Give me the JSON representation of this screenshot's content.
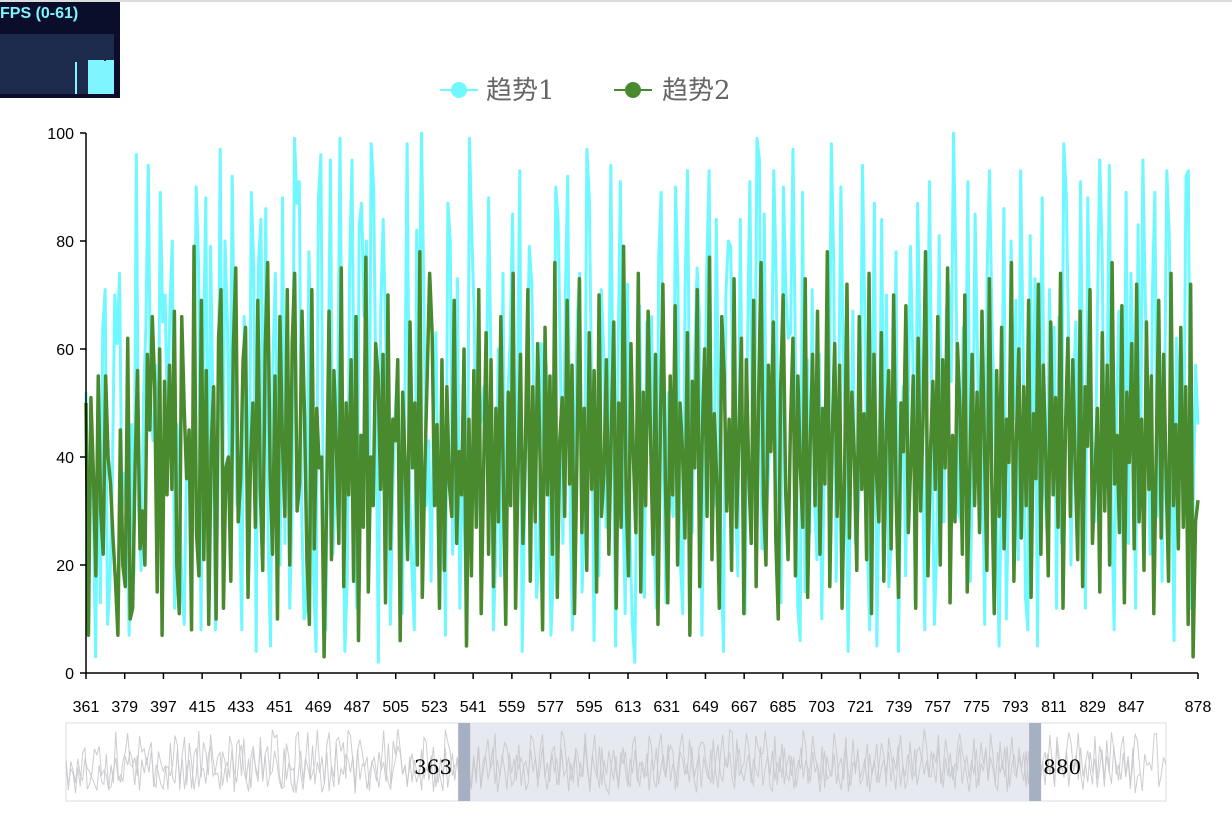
{
  "fps_monitor": {
    "label": "FPS (0-61)",
    "recent_fps": [
      61,
      61,
      61,
      61,
      61,
      61,
      60,
      61,
      61,
      61
    ]
  },
  "chart_data": {
    "type": "line",
    "x_start": 361,
    "x_end": 878,
    "x_tick_labels": [
      "361",
      "379",
      "397",
      "415",
      "433",
      "451",
      "469",
      "487",
      "505",
      "523",
      "541",
      "559",
      "577",
      "595",
      "613",
      "631",
      "649",
      "667",
      "685",
      "703",
      "721",
      "739",
      "757",
      "775",
      "793",
      "811",
      "829",
      "847",
      "878"
    ],
    "y_tick_labels": [
      "0",
      "20",
      "40",
      "60",
      "80",
      "100"
    ],
    "ylim": [
      0,
      100
    ],
    "grid": false,
    "legend_position": "top-center",
    "series": [
      {
        "name": "趋势1",
        "color": "#6ff8ff",
        "values": [
          52,
          14,
          40,
          32,
          3,
          42,
          13,
          64,
          71,
          9,
          17,
          36,
          70,
          61,
          74,
          30,
          37,
          30,
          7,
          46,
          18,
          96,
          30,
          19,
          51,
          64,
          94,
          47,
          43,
          57,
          29,
          89,
          65,
          70,
          46,
          67,
          80,
          12,
          46,
          34,
          16,
          9,
          41,
          43,
          29,
          46,
          90,
          75,
          8,
          60,
          88,
          15,
          79,
          48,
          8,
          31,
          97,
          27,
          80,
          65,
          30,
          92,
          55,
          31,
          33,
          8,
          66,
          52,
          19,
          89,
          75,
          4,
          76,
          84,
          29,
          86,
          24,
          5,
          58,
          74,
          37,
          20,
          88,
          24,
          61,
          12,
          29,
          99,
          87,
          91,
          30,
          10,
          12,
          78,
          58,
          17,
          4,
          88,
          96,
          32,
          8,
          49,
          95,
          22,
          33,
          48,
          99,
          44,
          4,
          17,
          75,
          95,
          36,
          12,
          83,
          87,
          66,
          80,
          25,
          98,
          90,
          51,
          2,
          67,
          84,
          63,
          40,
          9,
          33,
          48,
          57,
          32,
          11,
          47,
          98,
          34,
          19,
          8,
          82,
          61,
          100,
          69,
          31,
          43,
          17,
          46,
          63,
          34,
          19,
          39,
          7,
          87,
          80,
          22,
          43,
          73,
          12,
          40,
          25,
          6,
          99,
          81,
          66,
          29,
          45,
          47,
          53,
          49,
          88,
          56,
          8,
          22,
          60,
          18,
          74,
          9,
          51,
          62,
          85,
          39,
          50,
          93,
          4,
          29,
          55,
          79,
          72,
          44,
          14,
          21,
          61,
          39,
          57,
          43,
          7,
          18,
          90,
          84,
          56,
          24,
          70,
          92,
          31,
          8,
          42,
          66,
          74,
          15,
          30,
          97,
          88,
          52,
          6,
          49,
          18,
          71,
          60,
          27,
          38,
          94,
          45,
          5,
          58,
          91,
          33,
          11,
          72,
          25,
          9,
          2,
          45,
          68,
          36,
          14,
          65,
          47,
          66,
          24,
          12,
          77,
          89,
          35,
          13,
          52,
          33,
          29,
          90,
          72,
          21,
          11,
          71,
          93,
          40,
          26,
          59,
          75,
          66,
          7,
          42,
          74,
          93,
          44,
          31,
          84,
          46,
          23,
          4,
          70,
          80,
          79,
          49,
          31,
          18,
          84,
          36,
          11,
          59,
          91,
          47,
          43,
          99,
          95,
          23,
          85,
          29,
          40,
          48,
          93,
          73,
          33,
          13,
          90,
          71,
          62,
          63,
          97,
          59,
          12,
          6,
          89,
          15,
          58,
          26,
          71,
          31,
          21,
          59,
          10,
          35,
          53,
          39,
          98,
          76,
          17,
          46,
          90,
          57,
          43,
          4,
          35,
          67,
          24,
          28,
          38,
          94,
          66,
          25,
          8,
          48,
          87,
          5,
          37,
          84,
          32,
          70,
          16,
          24,
          45,
          78,
          4,
          36,
          53,
          18,
          46,
          79,
          59,
          13,
          87,
          63,
          38,
          8,
          55,
          91,
          45,
          9,
          23,
          81,
          39,
          28,
          67,
          72,
          54,
          100,
          74,
          30,
          28,
          64,
          48,
          91,
          17,
          38,
          85,
          58,
          26,
          44,
          9,
          74,
          93,
          66,
          49,
          29,
          5,
          37,
          86,
          10,
          34,
          80,
          47,
          69,
          21,
          93,
          61,
          14,
          8,
          81,
          39,
          73,
          5,
          50,
          88,
          34,
          26,
          71,
          40,
          64,
          12,
          66,
          24,
          98,
          89,
          62,
          20,
          51,
          65,
          33,
          91,
          46,
          12,
          88,
          57,
          42,
          28,
          66,
          95,
          78,
          36,
          50,
          94,
          32,
          8,
          48,
          67,
          39,
          16,
          89,
          24,
          74,
          57,
          12,
          83,
          34,
          95,
          69,
          46,
          22,
          71,
          89,
          29,
          59,
          17,
          48,
          93,
          81,
          38,
          6,
          62,
          45,
          49,
          37,
          92,
          93,
          12,
          31,
          57,
          46
        ],
        "source_note": ""
      },
      {
        "name": "趋势2",
        "color": "#4a8a2f",
        "values": [
          50,
          7,
          51,
          37,
          18,
          55,
          30,
          22,
          55,
          40,
          35,
          25,
          17,
          7,
          45,
          20,
          16,
          62,
          10,
          12,
          38,
          56,
          23,
          30,
          20,
          59,
          45,
          66,
          53,
          15,
          60,
          7,
          54,
          33,
          57,
          34,
          67,
          20,
          11,
          66,
          49,
          36,
          45,
          8,
          79,
          26,
          18,
          69,
          21,
          56,
          9,
          42,
          53,
          10,
          62,
          71,
          12,
          38,
          40,
          17,
          60,
          75,
          28,
          36,
          58,
          64,
          14,
          39,
          50,
          27,
          69,
          34,
          19,
          60,
          76,
          37,
          22,
          55,
          10,
          66,
          43,
          29,
          71,
          20,
          61,
          74,
          30,
          35,
          67,
          48,
          21,
          9,
          71,
          23,
          49,
          38,
          40,
          3,
          31,
          67,
          21,
          56,
          42,
          24,
          75,
          16,
          50,
          33,
          58,
          17,
          66,
          6,
          44,
          27,
          77,
          15,
          40,
          31,
          61,
          55,
          34,
          59,
          13,
          70,
          23,
          47,
          43,
          58,
          6,
          52,
          39,
          21,
          65,
          38,
          50,
          20,
          78,
          14,
          37,
          55,
          74,
          63,
          31,
          46,
          12,
          58,
          19,
          53,
          35,
          29,
          69,
          24,
          41,
          33,
          60,
          5,
          47,
          18,
          56,
          27,
          71,
          11,
          38,
          63,
          22,
          58,
          16,
          49,
          28,
          66,
          36,
          9,
          52,
          31,
          74,
          12,
          37,
          59,
          24,
          42,
          71,
          17,
          53,
          28,
          61,
          39,
          8,
          64,
          33,
          55,
          22,
          76,
          14,
          43,
          51,
          29,
          69,
          35,
          57,
          11,
          40,
          73,
          26,
          49,
          19,
          63,
          34,
          56,
          15,
          70,
          29,
          37,
          58,
          22,
          45,
          65,
          12,
          50,
          27,
          79,
          34,
          18,
          61,
          40,
          26,
          74,
          15,
          52,
          31,
          67,
          43,
          22,
          59,
          9,
          46,
          72,
          36,
          13,
          55,
          33,
          68,
          20,
          50,
          41,
          25,
          63,
          7,
          54,
          38,
          71,
          16,
          43,
          60,
          29,
          77,
          21,
          48,
          35,
          12,
          66,
          55,
          30,
          47,
          19,
          73,
          27,
          44,
          62,
          11,
          58,
          37,
          24,
          69,
          16,
          51,
          76,
          32,
          20,
          57,
          41,
          65,
          25,
          10,
          53,
          70,
          34,
          21,
          46,
          62,
          18,
          55,
          38,
          27,
          73,
          14,
          42,
          59,
          31,
          67,
          22,
          49,
          35,
          78,
          16,
          44,
          61,
          29,
          57,
          12,
          36,
          72,
          25,
          52,
          40,
          19,
          66,
          34,
          48,
          21,
          74,
          11,
          59,
          37,
          28,
          63,
          17,
          45,
          56,
          23,
          70,
          33,
          14,
          50,
          41,
          68,
          26,
          39,
          55,
          12,
          62,
          30,
          47,
          78,
          18,
          41,
          54,
          34,
          66,
          20,
          58,
          38,
          75,
          13,
          44,
          28,
          61,
          49,
          22,
          70,
          15,
          37,
          59,
          31,
          52,
          26,
          67,
          42,
          19,
          73,
          35,
          11,
          56,
          29,
          64,
          23,
          47,
          39,
          76,
          17,
          43,
          60,
          25,
          53,
          31,
          69,
          14,
          48,
          36,
          72,
          22,
          57,
          40,
          18,
          65,
          33,
          51,
          27,
          74,
          12,
          45,
          62,
          29,
          58,
          38,
          21,
          67,
          16,
          53,
          42,
          71,
          24,
          36,
          49,
          15,
          63,
          30,
          57,
          20,
          76,
          35,
          44,
          26,
          68,
          13,
          52,
          39,
          61,
          23,
          72,
          28,
          47,
          19,
          65,
          34,
          55,
          11,
          41,
          69,
          25,
          59,
          37,
          17,
          74,
          31,
          46,
          23,
          64,
          27,
          53,
          9,
          72,
          3,
          28,
          32
        ],
        "source_note": ""
      }
    ],
    "data_zoom": {
      "start_label": "363",
      "end_label": "880",
      "start_fraction": 0.362,
      "end_fraction": 0.881
    }
  }
}
